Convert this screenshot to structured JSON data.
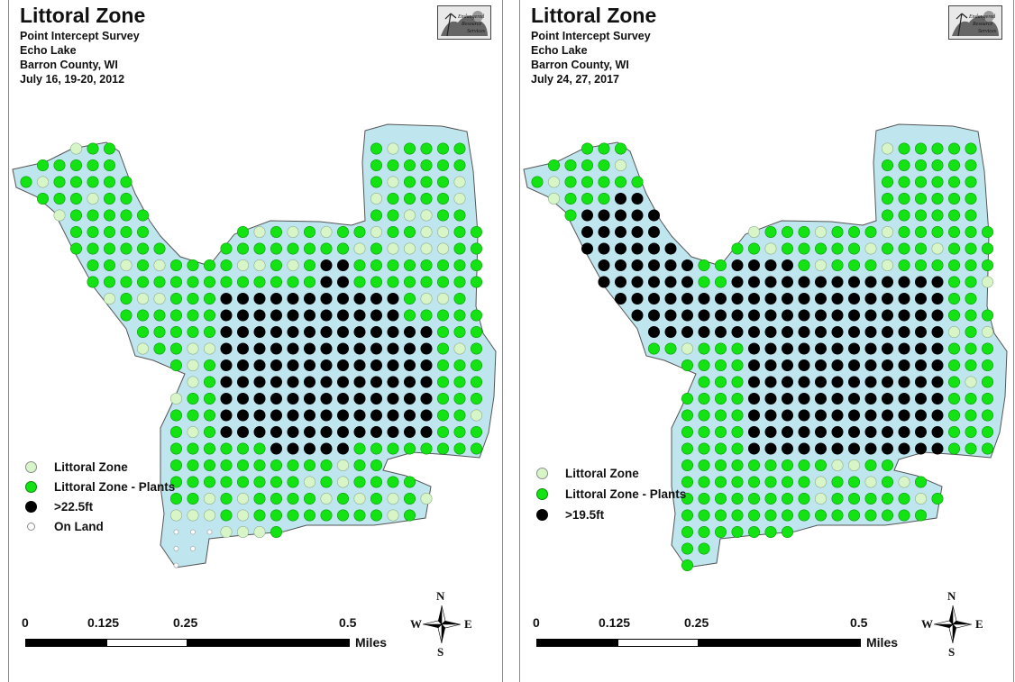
{
  "colors": {
    "water": "#bfe6ef",
    "littoral": "#d8f5c8",
    "plants": "#13e313",
    "deep": "#000000",
    "on_land": "#ffffff"
  },
  "panels": [
    {
      "title": "Littoral Zone",
      "subtitle_lines": [
        "Point Intercept Survey",
        "Echo Lake",
        "Barron County, WI",
        "July 16, 19-20, 2012"
      ],
      "legend": [
        {
          "symbol": "littoral",
          "label": "Littoral Zone"
        },
        {
          "symbol": "plants",
          "label": "Littoral Zone - Plants"
        },
        {
          "symbol": "deep",
          "label": ">22.5ft"
        },
        {
          "symbol": "on_land",
          "label": "On Land"
        }
      ],
      "scale": {
        "ticks": [
          "0",
          "0.125",
          "0.25",
          "0.5"
        ],
        "units": "Miles"
      },
      "compass": {
        "n": "N",
        "s": "S",
        "e": "E",
        "w": "W"
      },
      "logo_icon": "survey-logo-icon"
    },
    {
      "title": "Littoral Zone",
      "subtitle_lines": [
        "Point Intercept Survey",
        "Echo Lake",
        "Barron County, WI",
        "July 24, 27, 2017"
      ],
      "legend": [
        {
          "symbol": "littoral",
          "label": "Littoral Zone"
        },
        {
          "symbol": "plants",
          "label": "Littoral Zone - Plants"
        },
        {
          "symbol": "deep",
          "label": ">19.5ft"
        }
      ],
      "scale": {
        "ticks": [
          "0",
          "0.125",
          "0.25",
          "0.5"
        ],
        "units": "Miles"
      },
      "compass": {
        "n": "N",
        "s": "S",
        "e": "E",
        "w": "W"
      },
      "logo_icon": "survey-logo-icon"
    }
  ]
}
